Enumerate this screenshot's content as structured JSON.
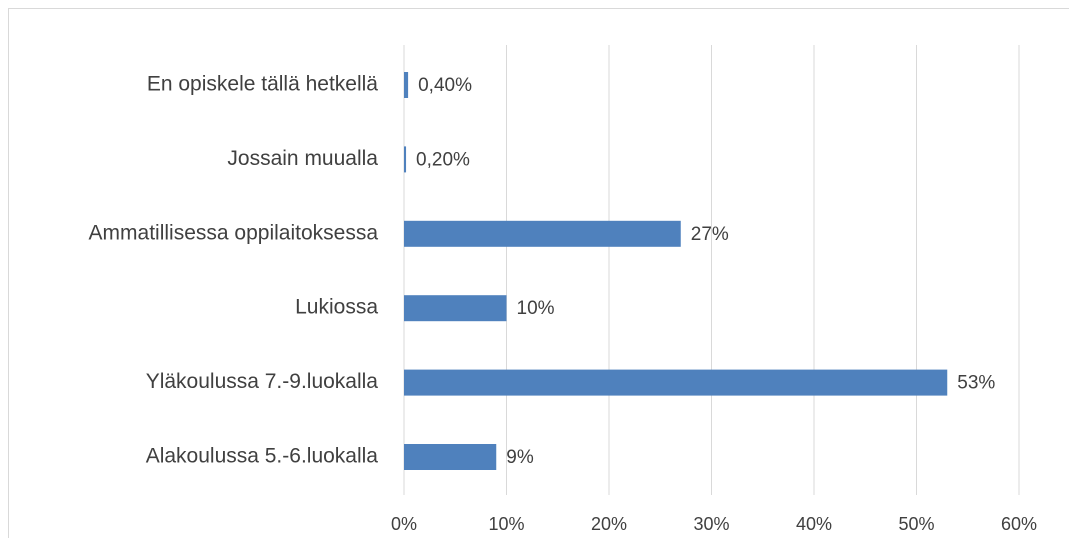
{
  "chart_data": {
    "type": "hbar",
    "categories": [
      "En opiskele tällä hetkellä",
      "Jossain muualla",
      "Ammatillisessa oppilaitoksessa",
      "Lukiossa",
      "Yläkoulussa 7.-9.luokalla",
      "Alakoulussa 5.-6.luokalla"
    ],
    "values": [
      0.4,
      0.2,
      27,
      10,
      53,
      9
    ],
    "value_labels": [
      "0,40%",
      "0,20%",
      "27%",
      "10%",
      "53%",
      "9%"
    ],
    "color": "#4f81bd",
    "xlim": [
      0,
      60
    ],
    "xticks": [
      {
        "value": 0,
        "label": "0%"
      },
      {
        "value": 10,
        "label": "10%"
      },
      {
        "value": 20,
        "label": "20%"
      },
      {
        "value": 30,
        "label": "30%"
      },
      {
        "value": 40,
        "label": "40%"
      },
      {
        "value": 50,
        "label": "50%"
      },
      {
        "value": 60,
        "label": "60%"
      }
    ],
    "grid": true
  }
}
